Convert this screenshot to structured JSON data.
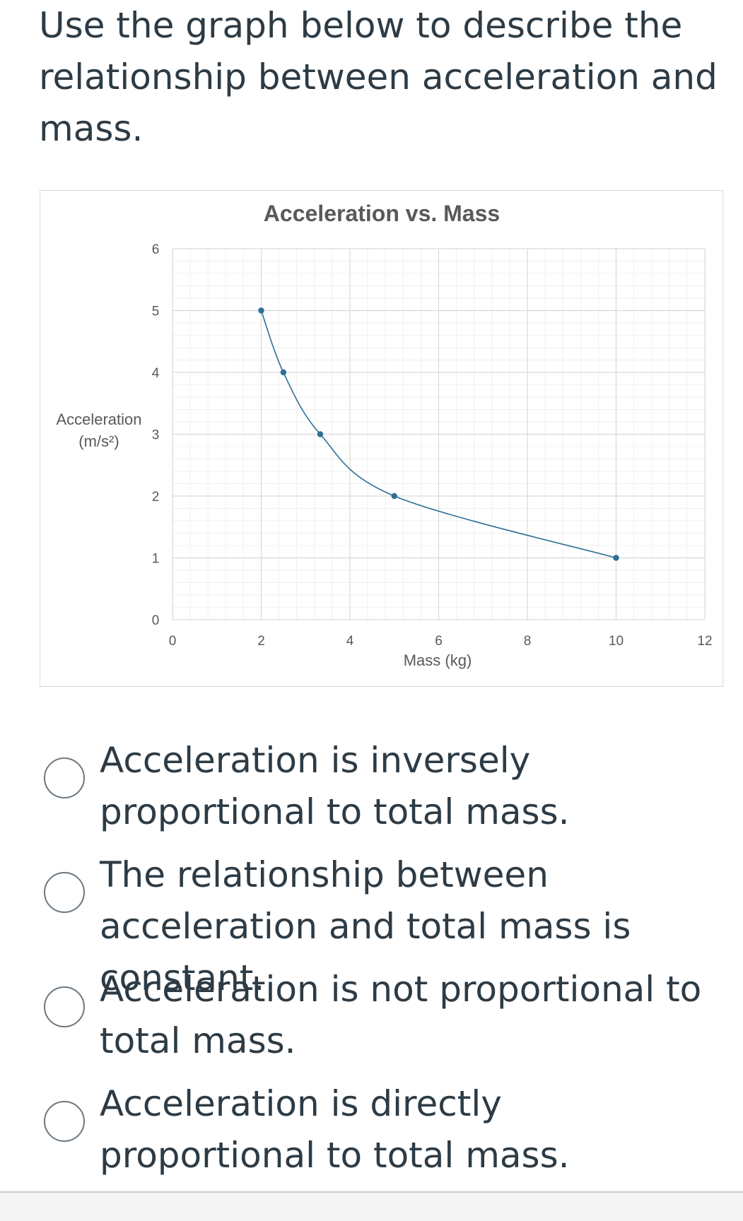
{
  "question": {
    "text": "Use the graph below to describe the relationship between acceleration and mass."
  },
  "chart_data": {
    "type": "scatter",
    "title": "Acceleration vs. Mass",
    "xlabel": "Mass (kg)",
    "ylabel_line1": "Acceleration",
    "ylabel_line2": "(m/s²)",
    "xlim": [
      0,
      12
    ],
    "ylim": [
      0,
      6
    ],
    "x_ticks": [
      0,
      2,
      4,
      6,
      8,
      10,
      12
    ],
    "y_ticks": [
      0,
      1,
      2,
      3,
      4,
      5,
      6
    ],
    "grid": "major and minor",
    "smoothed_line": true,
    "series": [
      {
        "color": "#2e6f97",
        "x": [
          2,
          2.5,
          3.33,
          5,
          10
        ],
        "y": [
          5,
          4,
          3,
          2,
          1
        ]
      }
    ]
  },
  "options": [
    {
      "label": "Acceleration is inversely proportional to total mass."
    },
    {
      "label": "The relationship between acceleration and total mass is constant."
    },
    {
      "label": "Acceleration is not proportional to total mass."
    },
    {
      "label": "Acceleration is directly proportional to total mass."
    }
  ]
}
